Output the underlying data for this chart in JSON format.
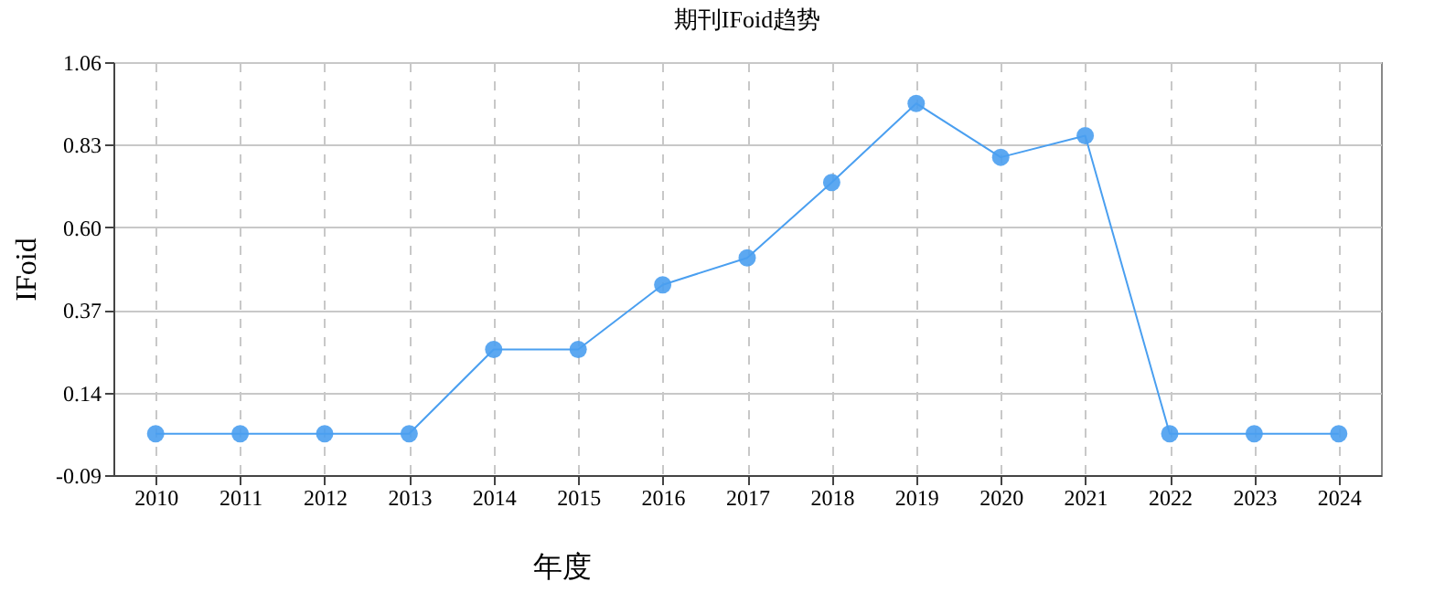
{
  "chart_data": {
    "type": "line",
    "title": "期刊IFoid趋势",
    "xlabel": "年度",
    "ylabel": "IFoid",
    "categories": [
      "2010",
      "2011",
      "2012",
      "2013",
      "2014",
      "2015",
      "2016",
      "2017",
      "2018",
      "2019",
      "2020",
      "2021",
      "2022",
      "2023",
      "2024"
    ],
    "series": [
      {
        "color": "#4a9ff0",
        "values": [
          0.025,
          0.025,
          0.025,
          0.025,
          0.26,
          0.26,
          0.44,
          0.515,
          0.725,
          0.945,
          0.795,
          0.855,
          0.025,
          0.025,
          0.025
        ]
      }
    ],
    "ylim": [
      -0.09,
      1.06
    ],
    "yticks": [
      -0.09,
      0.14,
      0.37,
      {
        "value": 0.6,
        "label": "0.60"
      },
      0.83,
      1.06
    ],
    "grid": true,
    "marker": "circle",
    "line_style": "solid"
  }
}
